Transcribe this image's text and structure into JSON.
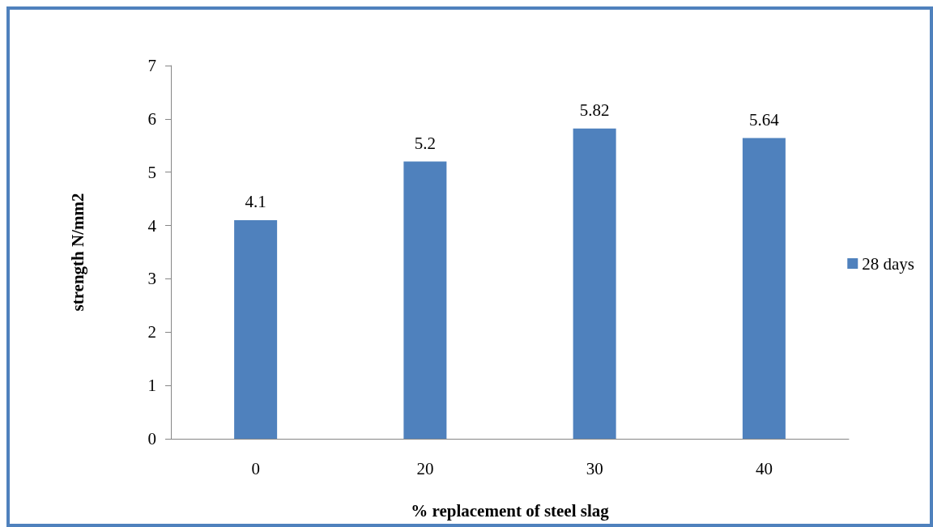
{
  "chart_data": {
    "type": "bar",
    "xlabel": "% replacement of steel slag",
    "ylabel": "strength N/mm2",
    "categories": [
      "0",
      "20",
      "30",
      "40"
    ],
    "series": [
      {
        "name": "28 days",
        "color": "#4f81bd",
        "values": [
          4.1,
          5.2,
          5.82,
          5.64
        ]
      }
    ],
    "ylim": [
      0,
      7
    ],
    "yticks": [
      0,
      1,
      2,
      3,
      4,
      5,
      6,
      7
    ],
    "grid": false,
    "legend": "right",
    "data_labels": true
  }
}
